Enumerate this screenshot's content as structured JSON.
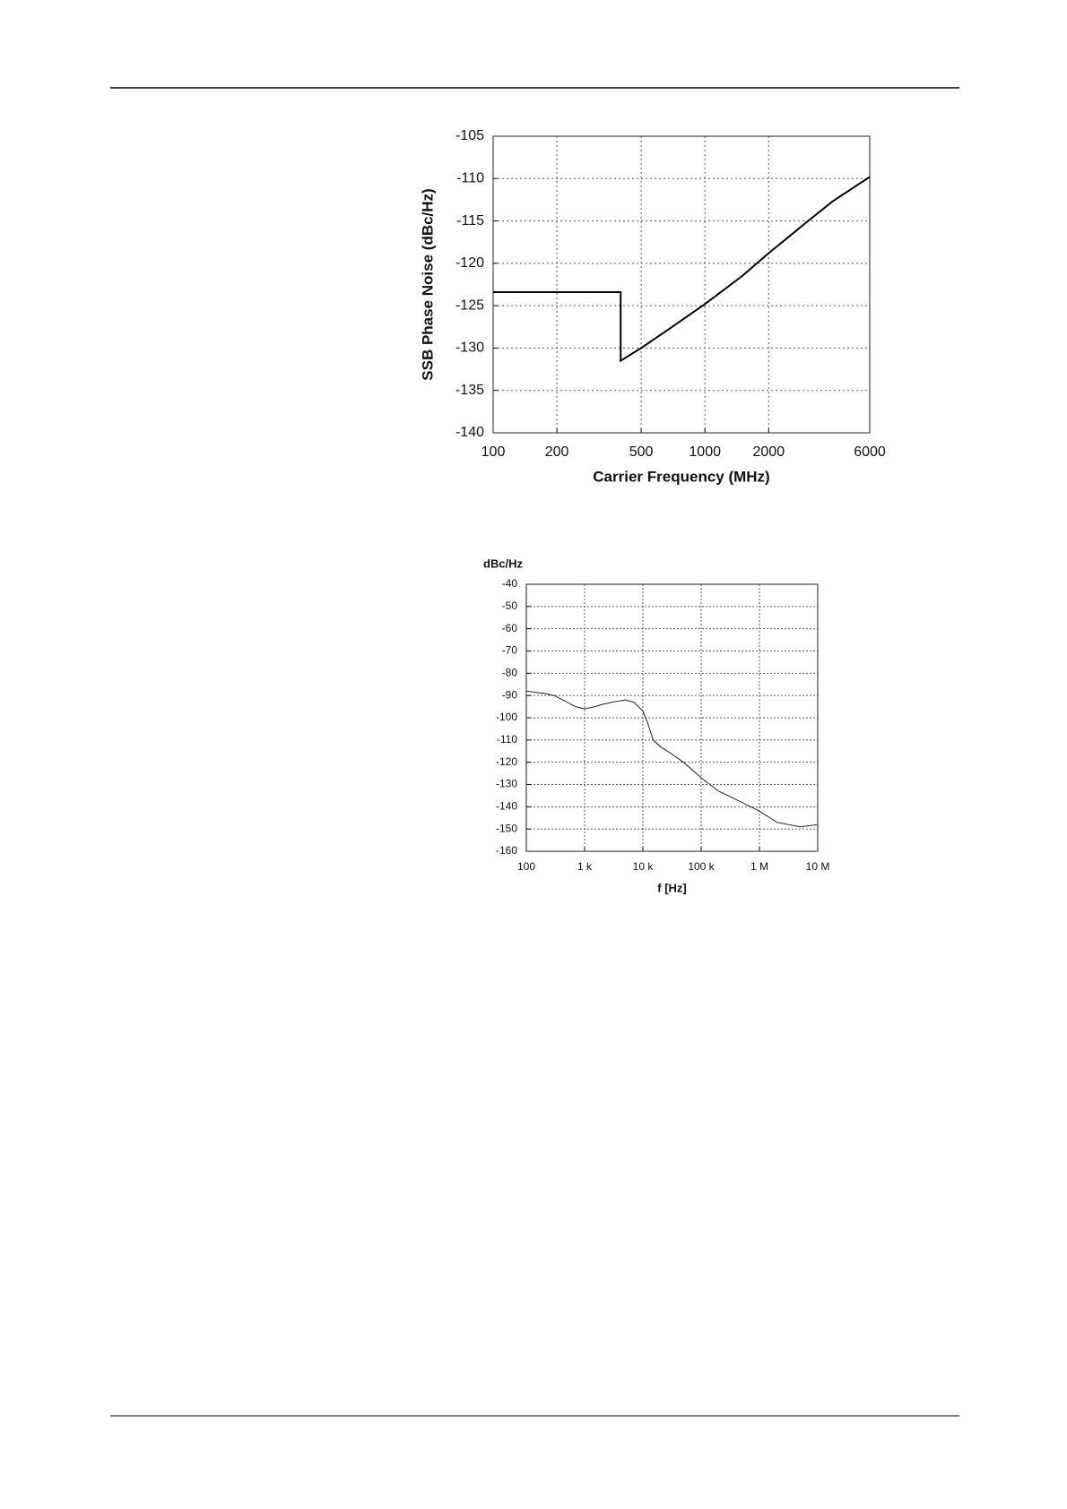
{
  "chart_data": [
    {
      "type": "line",
      "xlabel": "Carrier Frequency (MHz)",
      "ylabel": "SSB Phase Noise (dBc/Hz)",
      "xlog": true,
      "grid": true,
      "color": "#000000",
      "x": [
        100,
        400,
        400,
        500,
        700,
        1000,
        1500,
        2000,
        3000,
        4000,
        6000
      ],
      "values": [
        -123.4,
        -123.4,
        -131.5,
        -130,
        -127.5,
        -124.8,
        -121.5,
        -118.8,
        -115.2,
        -112.7,
        -109.8
      ],
      "xlim": [
        100,
        6000
      ],
      "xticks": [
        100,
        200,
        500,
        1000,
        2000,
        6000
      ],
      "ylim": [
        -140,
        -105
      ],
      "yticks": [
        -140,
        -135,
        -130,
        -125,
        -120,
        -115,
        -110,
        -105
      ]
    },
    {
      "type": "line",
      "xlabel": "f [Hz]",
      "ylabel": "dBc/Hz",
      "xlog": true,
      "grid": true,
      "color": "#222222",
      "x": [
        100,
        200,
        300,
        500,
        700,
        1000,
        1500,
        2000,
        3000,
        5000,
        7000,
        10000,
        12000,
        15000,
        20000,
        30000,
        50000,
        100000,
        200000,
        500000,
        1000000,
        2000000,
        5000000,
        10000000
      ],
      "values": [
        -88,
        -89,
        -90,
        -93,
        -95,
        -96,
        -95,
        -94,
        -93,
        -92,
        -93,
        -97,
        -102,
        -110,
        -113,
        -116,
        -120,
        -127,
        -133,
        -138,
        -142,
        -147,
        -149,
        -148
      ],
      "xlim": [
        100,
        10000000
      ],
      "xticks": [
        100,
        {
          "value": 1000,
          "label": "1 k"
        },
        {
          "value": 10000,
          "label": "10 k"
        },
        {
          "value": 100000,
          "label": "100 k"
        },
        {
          "value": 1000000,
          "label": "1 M"
        },
        {
          "value": 10000000,
          "label": "10 M"
        }
      ],
      "ylim": [
        -160,
        -40
      ],
      "yticks": [
        -160,
        -150,
        -140,
        -130,
        -120,
        -110,
        -100,
        -90,
        -80,
        -70,
        -60,
        -50,
        -40
      ]
    }
  ]
}
